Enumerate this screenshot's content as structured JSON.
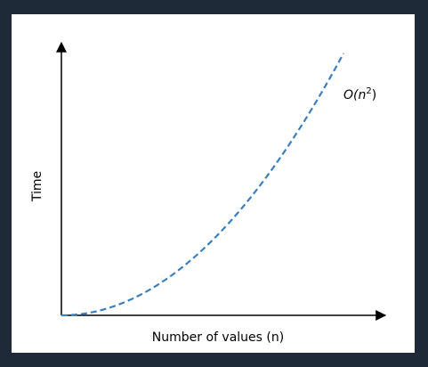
{
  "chart_data": {
    "type": "line",
    "title": "",
    "xlabel": "Number of values (n)",
    "ylabel": "Time",
    "xlim": [
      0,
      10
    ],
    "ylim": [
      0,
      100
    ],
    "grid": false,
    "ticks": false,
    "series": [
      {
        "name": "O(n²)",
        "label_prefix": "O(n",
        "label_exponent": "2",
        "label_suffix": ")",
        "function": "n^2",
        "n_range": [
          0,
          10
        ],
        "style": "dashed",
        "color": "#3a7fbf"
      }
    ]
  },
  "colors": {
    "background": "#1f2a38",
    "plot_background": "#ffffff",
    "axis": "#000000",
    "curve": "#3a7fbf"
  }
}
